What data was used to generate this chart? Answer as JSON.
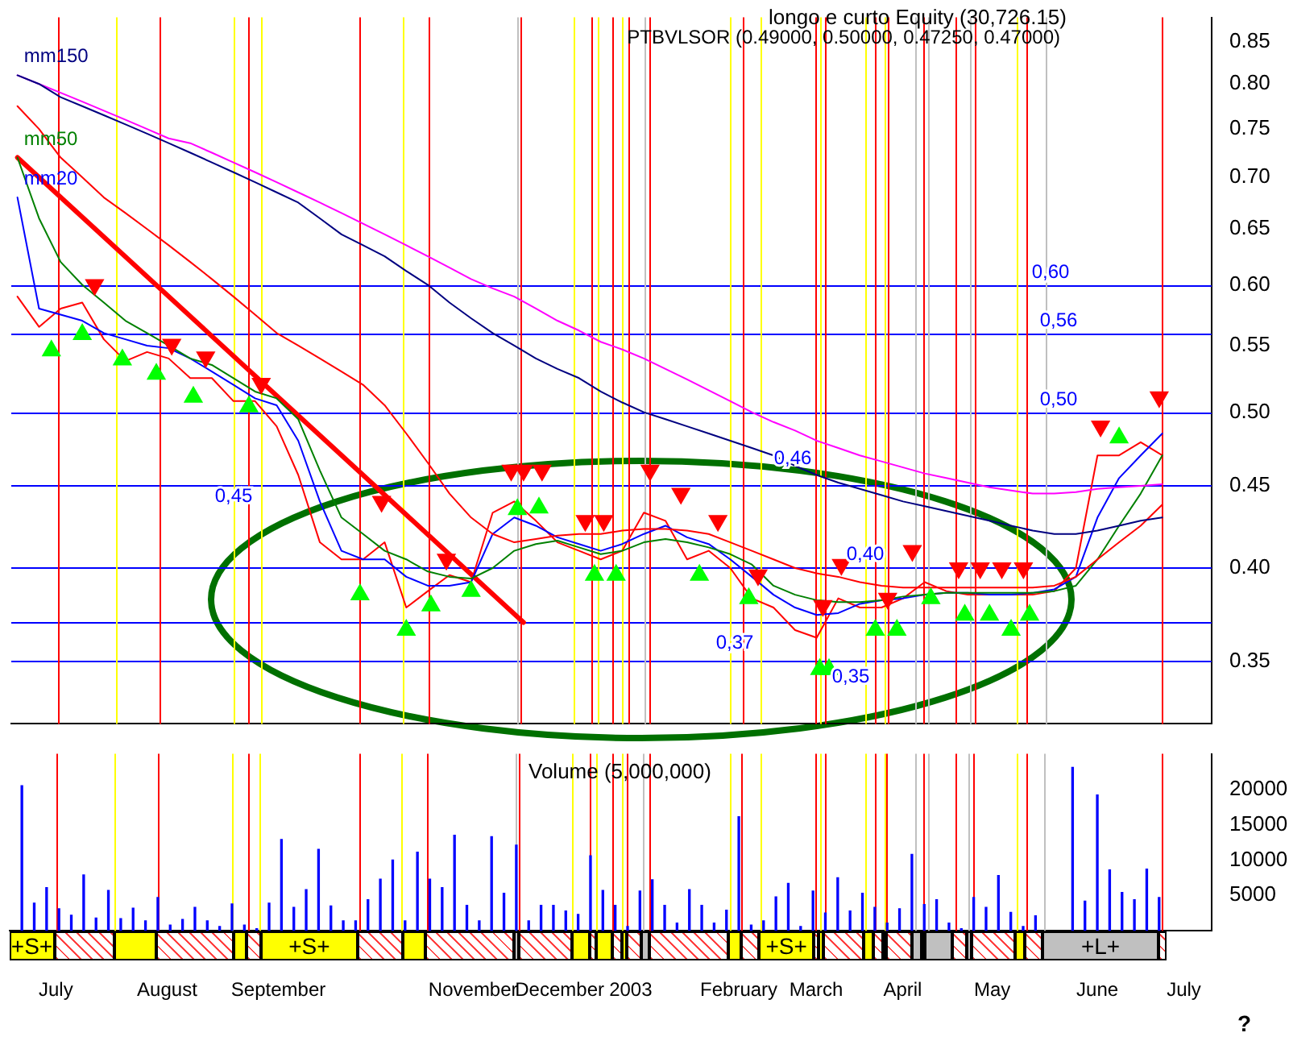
{
  "chart_data": [
    {
      "type": "line",
      "title": "longo e curto Equity (30,726.15)",
      "subtitle": "PTBVLSOR (0.49000, 0.50000, 0.47250, 0.47000)",
      "log": "y",
      "tick_labels": "y",
      "x": [
        "2002-06-24",
        "2002-07-01",
        "2002-07-08",
        "2002-07-15",
        "2002-07-22",
        "2002-07-29",
        "2002-08-05",
        "2002-08-12",
        "2002-08-19",
        "2002-08-26",
        "2002-09-02",
        "2002-09-09",
        "2002-09-16",
        "2002-09-23",
        "2002-09-30",
        "2002-10-07",
        "2002-10-14",
        "2002-10-21",
        "2002-10-28",
        "2002-11-04",
        "2002-11-11",
        "2002-11-18",
        "2002-11-25",
        "2002-12-02",
        "2002-12-09",
        "2002-12-16",
        "2002-12-23",
        "2002-12-30",
        "2003-01-06",
        "2003-01-13",
        "2003-01-20",
        "2003-01-27",
        "2003-02-03",
        "2003-02-10",
        "2003-02-17",
        "2003-02-24",
        "2003-03-03",
        "2003-03-10",
        "2003-03-17",
        "2003-03-24",
        "2003-03-31",
        "2003-04-07",
        "2003-04-14",
        "2003-04-21",
        "2003-04-28",
        "2003-05-05",
        "2003-05-12",
        "2003-05-19",
        "2003-05-26",
        "2003-06-02",
        "2003-06-09",
        "2003-06-16",
        "2003-06-23",
        "2003-06-30"
      ],
      "xlim": [
        "2002-06-22",
        "2003-07-16"
      ],
      "ylim": [
        0.32,
        0.88
      ],
      "yticks": [
        {
          "value": 0.35,
          "label": "0.35"
        },
        {
          "value": 0.4,
          "label": "0.40"
        },
        {
          "value": 0.45,
          "label": "0.45"
        },
        {
          "value": 0.5,
          "label": "0.50"
        },
        {
          "value": 0.55,
          "label": "0.55"
        },
        {
          "value": 0.6,
          "label": "0.60"
        },
        {
          "value": 0.65,
          "label": "0.65"
        },
        {
          "value": 0.7,
          "label": "0.70"
        },
        {
          "value": 0.75,
          "label": "0.75"
        },
        {
          "value": 0.8,
          "label": "0.80"
        },
        {
          "value": 0.85,
          "label": "0.85"
        }
      ],
      "series": [
        {
          "name": "mm150",
          "color": "#000080",
          "values": [
            0.81,
            0.8,
            0.785,
            0.775,
            0.765,
            0.755,
            0.745,
            0.735,
            0.725,
            0.715,
            0.705,
            0.695,
            0.685,
            0.675,
            0.66,
            0.645,
            0.635,
            0.625,
            0.612,
            0.6,
            0.585,
            0.572,
            0.56,
            0.55,
            0.54,
            0.532,
            0.525,
            0.515,
            0.507,
            0.5,
            0.495,
            0.49,
            0.485,
            0.48,
            0.475,
            0.47,
            0.463,
            0.457,
            0.452,
            0.448,
            0.444,
            0.44,
            0.437,
            0.434,
            0.431,
            0.428,
            0.425,
            0.422,
            0.42,
            0.42,
            0.422,
            0.425,
            0.428,
            0.43
          ]
        },
        {
          "color": "#ff00ff",
          "values": [
            0.81,
            0.8,
            0.79,
            0.78,
            0.77,
            0.76,
            0.75,
            0.74,
            0.735,
            0.725,
            0.715,
            0.705,
            0.695,
            0.685,
            0.675,
            0.665,
            0.655,
            0.645,
            0.635,
            0.625,
            0.615,
            0.605,
            0.597,
            0.59,
            0.58,
            0.57,
            0.562,
            0.553,
            0.547,
            0.54,
            0.532,
            0.524,
            0.516,
            0.508,
            0.5,
            0.493,
            0.487,
            0.48,
            0.475,
            0.47,
            0.466,
            0.462,
            0.458,
            0.455,
            0.452,
            0.449,
            0.447,
            0.445,
            0.445,
            0.446,
            0.448,
            0.449,
            0.45,
            0.451
          ]
        },
        {
          "color": "#ff0000",
          "values": [
            0.775,
            0.75,
            0.72,
            0.7,
            0.68,
            0.665,
            0.65,
            0.635,
            0.62,
            0.605,
            0.59,
            0.575,
            0.56,
            0.55,
            0.54,
            0.53,
            0.52,
            0.505,
            0.485,
            0.465,
            0.445,
            0.43,
            0.42,
            0.415,
            0.417,
            0.419,
            0.42,
            0.42,
            0.422,
            0.423,
            0.423,
            0.422,
            0.42,
            0.415,
            0.41,
            0.405,
            0.4,
            0.397,
            0.395,
            0.392,
            0.39,
            0.389,
            0.389,
            0.389,
            0.389,
            0.389,
            0.389,
            0.389,
            0.39,
            0.395,
            0.405,
            0.415,
            0.425,
            0.438
          ]
        },
        {
          "name": "mm50",
          "color": "#008000",
          "values": [
            0.72,
            0.66,
            0.62,
            0.6,
            0.585,
            0.57,
            0.56,
            0.55,
            0.54,
            0.535,
            0.525,
            0.515,
            0.51,
            0.495,
            0.46,
            0.43,
            0.42,
            0.41,
            0.405,
            0.398,
            0.395,
            0.394,
            0.4,
            0.41,
            0.414,
            0.416,
            0.412,
            0.408,
            0.41,
            0.415,
            0.417,
            0.415,
            0.412,
            0.408,
            0.402,
            0.39,
            0.385,
            0.382,
            0.381,
            0.381,
            0.382,
            0.384,
            0.385,
            0.386,
            0.386,
            0.386,
            0.386,
            0.386,
            0.387,
            0.39,
            0.405,
            0.425,
            0.445,
            0.47
          ]
        },
        {
          "name": "mm20",
          "color": "#0000ff",
          "values": [
            0.68,
            0.58,
            0.575,
            0.57,
            0.56,
            0.555,
            0.55,
            0.548,
            0.54,
            0.53,
            0.52,
            0.51,
            0.505,
            0.48,
            0.44,
            0.41,
            0.405,
            0.405,
            0.395,
            0.39,
            0.39,
            0.392,
            0.42,
            0.43,
            0.425,
            0.418,
            0.414,
            0.41,
            0.414,
            0.42,
            0.425,
            0.418,
            0.414,
            0.405,
            0.395,
            0.385,
            0.378,
            0.374,
            0.375,
            0.38,
            0.382,
            0.383,
            0.385,
            0.386,
            0.386,
            0.385,
            0.385,
            0.386,
            0.388,
            0.395,
            0.43,
            0.455,
            0.47,
            0.485
          ]
        },
        {
          "color": "#ff0000",
          "values": [
            0.59,
            0.565,
            0.58,
            0.585,
            0.555,
            0.538,
            0.545,
            0.54,
            0.525,
            0.525,
            0.508,
            0.508,
            0.49,
            0.457,
            0.415,
            0.405,
            0.405,
            0.415,
            0.378,
            0.387,
            0.396,
            0.392,
            0.433,
            0.44,
            0.428,
            0.415,
            0.41,
            0.405,
            0.41,
            0.433,
            0.428,
            0.405,
            0.41,
            0.4,
            0.383,
            0.378,
            0.366,
            0.362,
            0.383,
            0.378,
            0.378,
            0.383,
            0.392,
            0.387,
            0.385,
            0.385,
            0.385,
            0.385,
            0.387,
            0.4,
            0.47,
            0.47,
            0.479,
            0.47
          ]
        },
        {
          "color": "#ff0000",
          "x": [
            "2002-06-24",
            "2002-12-05"
          ],
          "values": [
            0.72,
            0.37
          ]
        },
        {
          "type": "scatter",
          "color": "#ff0000",
          "marker": "triangle",
          "x": [
            "2002-07-19",
            "2002-08-13",
            "2002-08-24",
            "2002-09-11",
            "2002-10-20",
            "2002-11-10",
            "2002-12-01",
            "2002-12-05",
            "2002-12-11",
            "2002-12-25",
            "2002-12-31",
            "2003-01-15",
            "2003-01-25",
            "2003-02-06",
            "2003-02-19",
            "2003-03-12",
            "2003-03-18",
            "2003-04-02",
            "2003-04-10",
            "2003-04-25",
            "2003-05-02",
            "2003-05-09",
            "2003-05-16",
            "2003-06-10",
            "2003-06-29"
          ],
          "values": [
            0.6,
            0.551,
            0.541,
            0.521,
            0.44,
            0.405,
            0.46,
            0.46,
            0.46,
            0.428,
            0.428,
            0.46,
            0.445,
            0.428,
            0.396,
            0.379,
            0.402,
            0.383,
            0.41,
            0.4,
            0.4,
            0.4,
            0.4,
            0.49,
            0.511
          ]
        },
        {
          "type": "scatter",
          "color": "#00ff00",
          "marker": "triangle",
          "x": [
            "2002-07-05",
            "2002-07-15",
            "2002-07-28",
            "2002-08-08",
            "2002-08-20",
            "2002-09-07",
            "2002-10-13",
            "2002-10-28",
            "2002-11-05",
            "2002-11-18",
            "2002-12-03",
            "2002-12-10",
            "2002-12-28",
            "2003-01-04",
            "2003-01-31",
            "2003-02-16",
            "2003-03-11",
            "2003-03-14",
            "2003-03-29",
            "2003-04-05",
            "2003-04-16",
            "2003-04-27",
            "2003-05-05",
            "2003-05-12",
            "2003-05-18",
            "2003-06-16"
          ],
          "values": [
            0.546,
            0.559,
            0.539,
            0.528,
            0.511,
            0.504,
            0.385,
            0.366,
            0.379,
            0.387,
            0.435,
            0.436,
            0.396,
            0.396,
            0.396,
            0.383,
            0.346,
            0.346,
            0.366,
            0.366,
            0.383,
            0.374,
            0.374,
            0.366,
            0.374,
            0.482
          ]
        }
      ],
      "annotations": [
        "0,46"
      ],
      "ref_lines": [
        {
          "axis": "y",
          "value": 0.6,
          "label": "0,60",
          "color": "#0000ff"
        },
        {
          "axis": "y",
          "value": 0.56,
          "label": "0,56",
          "color": "#0000ff"
        },
        {
          "axis": "y",
          "value": 0.5,
          "label": "0,50",
          "color": "#0000ff"
        },
        {
          "axis": "y",
          "value": 0.45,
          "label": "0,45",
          "color": "#0000ff"
        },
        {
          "axis": "y",
          "value": 0.4,
          "label": "0,40",
          "color": "#0000ff"
        },
        {
          "axis": "y",
          "value": 0.37,
          "label": "0,37",
          "color": "#0000ff"
        },
        {
          "axis": "y",
          "value": 0.35,
          "label": "0,35",
          "color": "#0000ff"
        },
        {
          "axis": "x",
          "value": "2002-07-07",
          "color": "#ff0000"
        },
        {
          "axis": "x",
          "value": "2002-08-09",
          "color": "#ff0000"
        },
        {
          "axis": "x",
          "value": "2002-09-07",
          "color": "#ff0000"
        },
        {
          "axis": "x",
          "value": "2002-10-13",
          "color": "#ff0000"
        },
        {
          "axis": "x",
          "value": "2002-11-04",
          "color": "#ff0000"
        },
        {
          "axis": "x",
          "value": "2002-12-04",
          "color": "#ff0000"
        },
        {
          "axis": "x",
          "value": "2002-12-27",
          "color": "#ff0000"
        },
        {
          "axis": "x",
          "value": "2003-01-03",
          "color": "#ff0000"
        },
        {
          "axis": "x",
          "value": "2003-01-08",
          "color": "#ff0000"
        },
        {
          "axis": "x",
          "value": "2003-01-15",
          "color": "#ff0000"
        },
        {
          "axis": "x",
          "value": "2003-02-14",
          "color": "#ff0000"
        },
        {
          "axis": "x",
          "value": "2003-03-09T14:00",
          "color": "#ff0000"
        },
        {
          "axis": "x",
          "value": "2003-03-12T17:00",
          "color": "#ff0000"
        },
        {
          "axis": "x",
          "value": "2003-03-28T19:00",
          "color": "#ff0000"
        },
        {
          "axis": "x",
          "value": "2003-04-01T22:00",
          "color": "#ff0000"
        },
        {
          "axis": "x",
          "value": "2003-04-13T17:00",
          "color": "#ff0000"
        },
        {
          "axis": "x",
          "value": "2003-04-24",
          "color": "#ff0000"
        },
        {
          "axis": "x",
          "value": "2003-04-30",
          "color": "#ff0000"
        },
        {
          "axis": "x",
          "value": "2003-05-17",
          "color": "#ff0000"
        },
        {
          "axis": "x",
          "value": "2003-06-30",
          "color": "#ff0000"
        },
        {
          "axis": "x",
          "value": "2002-07-26",
          "color": "#ffff00"
        },
        {
          "axis": "x",
          "value": "2002-09-02",
          "color": "#ffff00"
        },
        {
          "axis": "x",
          "value": "2002-09-11",
          "color": "#ffff00"
        },
        {
          "axis": "x",
          "value": "2002-10-27",
          "color": "#ffff00"
        },
        {
          "axis": "x",
          "value": "2002-12-21",
          "color": "#ffff00"
        },
        {
          "axis": "x",
          "value": "2002-12-29",
          "color": "#ffff00"
        },
        {
          "axis": "x",
          "value": "2003-01-06",
          "color": "#ffff00"
        },
        {
          "axis": "x",
          "value": "2003-02-10",
          "color": "#ffff00"
        },
        {
          "axis": "x",
          "value": "2003-02-20",
          "color": "#ffff00"
        },
        {
          "axis": "x",
          "value": "2003-03-11T05:00",
          "color": "#ffff00"
        },
        {
          "axis": "x",
          "value": "2003-03-25T17:00",
          "color": "#ffff00"
        },
        {
          "axis": "x",
          "value": "2003-03-31T22:00",
          "color": "#ffff00"
        },
        {
          "axis": "x",
          "value": "2003-05-14",
          "color": "#ffff00"
        },
        {
          "axis": "x",
          "value": "2002-12-03",
          "color": "#c0c0c0"
        },
        {
          "axis": "x",
          "value": "2003-01-13",
          "color": "#c0c0c0"
        },
        {
          "axis": "x",
          "value": "2003-04-11T02:00",
          "color": "#c0c0c0"
        },
        {
          "axis": "x",
          "value": "2003-04-15T02:00",
          "color": "#c0c0c0"
        },
        {
          "axis": "x",
          "value": "2003-04-28T12:00",
          "color": "#c0c0c0"
        },
        {
          "axis": "x",
          "value": "2003-05-23",
          "color": "#c0c0c0"
        }
      ]
    },
    {
      "type": "bar",
      "title": "Volume (5,000,000)",
      "xlim": [
        "2002-06-22",
        "2003-07-16"
      ],
      "ylim": [
        0,
        25000
      ],
      "yticks": [
        5000,
        10000,
        15000,
        20000
      ],
      "xticks": [
        {
          "value": "2002-07-07",
          "label": "July"
        },
        {
          "value": "2002-08-12",
          "label": "August"
        },
        {
          "value": "2002-09-17",
          "label": "September"
        },
        {
          "value": "2002-11-19",
          "label": "November"
        },
        {
          "value": "2002-12-17",
          "label": "December"
        },
        {
          "value": "2003-01-09",
          "label": "2003"
        },
        {
          "value": "2003-02-13",
          "label": "February"
        },
        {
          "value": "2003-03-10",
          "label": "March"
        },
        {
          "value": "2003-04-07",
          "label": "April"
        },
        {
          "value": "2003-05-06",
          "label": "May"
        },
        {
          "value": "2003-06-09",
          "label": "June"
        },
        {
          "value": "2003-07-07",
          "label": "July"
        }
      ],
      "x": [
        "2002-06-26",
        "2002-06-30",
        "2002-07-04",
        "2002-07-08",
        "2002-07-12",
        "2002-07-16",
        "2002-07-20",
        "2002-07-24",
        "2002-07-28",
        "2002-08-01",
        "2002-08-05",
        "2002-08-09",
        "2002-08-13",
        "2002-08-17",
        "2002-08-21",
        "2002-08-25",
        "2002-08-29",
        "2002-09-02",
        "2002-09-06",
        "2002-09-10",
        "2002-09-14",
        "2002-09-18",
        "2002-09-22",
        "2002-09-26",
        "2002-09-30",
        "2002-10-04",
        "2002-10-08",
        "2002-10-12",
        "2002-10-16",
        "2002-10-20",
        "2002-10-24",
        "2002-10-28",
        "2002-11-01",
        "2002-11-05",
        "2002-11-09",
        "2002-11-13",
        "2002-11-17",
        "2002-11-21",
        "2002-11-25",
        "2002-11-29",
        "2002-12-03",
        "2002-12-07",
        "2002-12-11",
        "2002-12-15",
        "2002-12-19",
        "2002-12-23",
        "2002-12-27",
        "2002-12-31",
        "2003-01-04",
        "2003-01-08",
        "2003-01-12",
        "2003-01-16",
        "2003-01-20",
        "2003-01-24",
        "2003-01-28",
        "2003-02-01",
        "2003-02-05",
        "2003-02-09",
        "2003-02-13",
        "2003-02-17",
        "2003-02-21",
        "2003-02-25",
        "2003-03-01",
        "2003-03-05",
        "2003-03-09",
        "2003-03-13",
        "2003-03-17",
        "2003-03-21",
        "2003-03-25",
        "2003-03-29",
        "2003-04-02",
        "2003-04-06",
        "2003-04-10",
        "2003-04-14",
        "2003-04-18",
        "2003-04-22",
        "2003-04-26",
        "2003-04-30",
        "2003-05-04",
        "2003-05-08",
        "2003-05-12",
        "2003-05-16",
        "2003-05-20",
        "2003-05-24",
        "2003-05-28",
        "2003-06-01",
        "2003-06-05",
        "2003-06-09",
        "2003-06-13",
        "2003-06-17",
        "2003-06-21",
        "2003-06-25",
        "2003-06-29"
      ],
      "series": [
        {
          "color": "#0000ff",
          "values": [
            20500,
            3900,
            6100,
            3100,
            2200,
            7900,
            1800,
            5700,
            1700,
            3200,
            1400,
            4700,
            800,
            1600,
            3300,
            1400,
            600,
            3800,
            800,
            300,
            3900,
            12900,
            3300,
            5800,
            11500,
            3500,
            1400,
            1400,
            4400,
            7300,
            10000,
            1400,
            11100,
            7300,
            6100,
            13500,
            3600,
            1400,
            13300,
            5300,
            12100,
            1400,
            3600,
            3600,
            2800,
            2300,
            10600,
            5700,
            3600,
            600,
            5600,
            7200,
            3600,
            1100,
            5800,
            3600,
            1100,
            2900,
            16100,
            800,
            1400,
            4800,
            6700,
            600,
            5600,
            2500,
            7500,
            2800,
            5300,
            3300,
            1100,
            3100,
            10800,
            3700,
            4400,
            1100,
            300,
            4700,
            3300,
            7800,
            2600,
            600,
            2100,
            null,
            null,
            23100,
            4200,
            19200,
            8600,
            5400,
            4400,
            8700,
            4700
          ]
        }
      ],
      "annotations": [
        "+S+",
        "+S+",
        "+S+",
        "+L+",
        "?"
      ],
      "ref_lines": [
        {
          "axis": "x",
          "value": "2002-07-07",
          "color": "#ff0000"
        },
        {
          "axis": "x",
          "value": "2002-08-09",
          "color": "#ff0000"
        },
        {
          "axis": "x",
          "value": "2002-09-07",
          "color": "#ff0000"
        },
        {
          "axis": "x",
          "value": "2002-10-13",
          "color": "#ff0000"
        },
        {
          "axis": "x",
          "value": "2002-11-04",
          "color": "#ff0000"
        },
        {
          "axis": "x",
          "value": "2002-12-04",
          "color": "#ff0000"
        },
        {
          "axis": "x",
          "value": "2002-12-27",
          "color": "#ff0000"
        },
        {
          "axis": "x",
          "value": "2003-01-03",
          "color": "#ff0000"
        },
        {
          "axis": "x",
          "value": "2003-01-08",
          "color": "#ff0000"
        },
        {
          "axis": "x",
          "value": "2003-01-15",
          "color": "#ff0000"
        },
        {
          "axis": "x",
          "value": "2003-02-14",
          "color": "#ff0000"
        },
        {
          "axis": "x",
          "value": "2003-03-09T14:00",
          "color": "#ff0000"
        },
        {
          "axis": "x",
          "value": "2003-03-12T17:00",
          "color": "#ff0000"
        },
        {
          "axis": "x",
          "value": "2003-03-28T19:00",
          "color": "#ff0000"
        },
        {
          "axis": "x",
          "value": "2003-04-01T22:00",
          "color": "#ff0000"
        },
        {
          "axis": "x",
          "value": "2003-04-13T17:00",
          "color": "#ff0000"
        },
        {
          "axis": "x",
          "value": "2003-04-24",
          "color": "#ff0000"
        },
        {
          "axis": "x",
          "value": "2003-04-30",
          "color": "#ff0000"
        },
        {
          "axis": "x",
          "value": "2003-05-17",
          "color": "#ff0000"
        },
        {
          "axis": "x",
          "value": "2003-06-30",
          "color": "#ff0000"
        },
        {
          "axis": "x",
          "value": "2002-07-26",
          "color": "#ffff00"
        },
        {
          "axis": "x",
          "value": "2002-09-02",
          "color": "#ffff00"
        },
        {
          "axis": "x",
          "value": "2002-09-11",
          "color": "#ffff00"
        },
        {
          "axis": "x",
          "value": "2002-10-27",
          "color": "#ffff00"
        },
        {
          "axis": "x",
          "value": "2002-12-21",
          "color": "#ffff00"
        },
        {
          "axis": "x",
          "value": "2002-12-29",
          "color": "#ffff00"
        },
        {
          "axis": "x",
          "value": "2003-01-06",
          "color": "#ffff00"
        },
        {
          "axis": "x",
          "value": "2003-02-10",
          "color": "#ffff00"
        },
        {
          "axis": "x",
          "value": "2003-02-20",
          "color": "#ffff00"
        },
        {
          "axis": "x",
          "value": "2003-03-11T05:00",
          "color": "#ffff00"
        },
        {
          "axis": "x",
          "value": "2003-03-25T17:00",
          "color": "#ffff00"
        },
        {
          "axis": "x",
          "value": "2003-03-31T22:00",
          "color": "#ffff00"
        },
        {
          "axis": "x",
          "value": "2003-05-14",
          "color": "#ffff00"
        },
        {
          "axis": "x",
          "value": "2002-12-03",
          "color": "#c0c0c0"
        },
        {
          "axis": "x",
          "value": "2003-01-13",
          "color": "#c0c0c0"
        },
        {
          "axis": "x",
          "value": "2003-04-11T02:00",
          "color": "#c0c0c0"
        },
        {
          "axis": "x",
          "value": "2003-04-15T02:00",
          "color": "#c0c0c0"
        },
        {
          "axis": "x",
          "value": "2003-04-28T12:00",
          "color": "#c0c0c0"
        },
        {
          "axis": "x",
          "value": "2003-05-23",
          "color": "#c0c0c0"
        }
      ]
    }
  ]
}
